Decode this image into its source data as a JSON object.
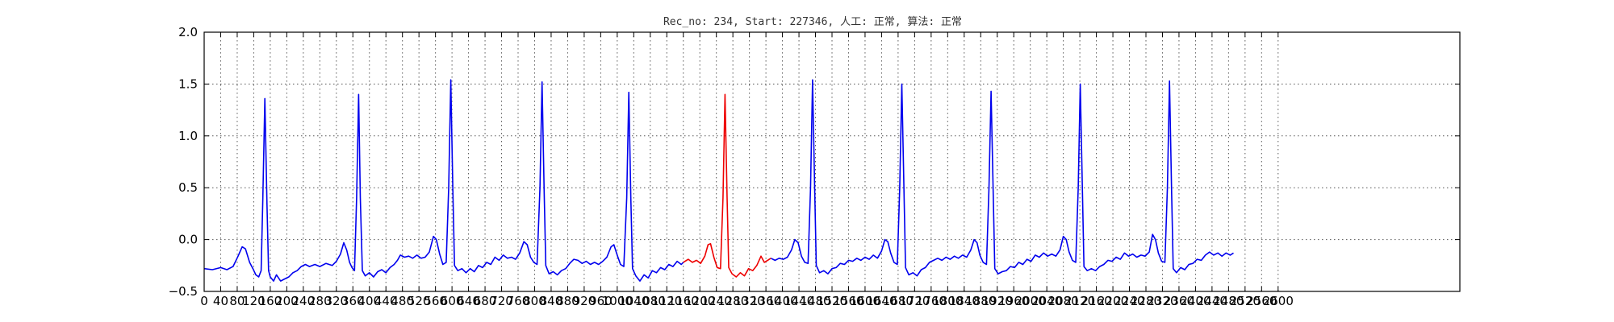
{
  "chart_data": {
    "type": "line",
    "title": "Rec_no: 234, Start: 227346, 人工: 正常, 算法: 正常",
    "xlabel": "",
    "ylabel": "",
    "xlim": [
      0,
      3040
    ],
    "ylim": [
      -0.5,
      2.0
    ],
    "grid": true,
    "yticks": [
      -0.5,
      0.0,
      0.5,
      1.0,
      1.5,
      2.0
    ],
    "ytick_labels": [
      "−0.5",
      "0.0",
      "0.5",
      "1.0",
      "1.5",
      "2.0"
    ],
    "xticks": [
      0,
      40,
      80,
      120,
      160,
      200,
      240,
      280,
      320,
      360,
      400,
      440,
      480,
      520,
      560,
      600,
      640,
      680,
      720,
      760,
      800,
      840,
      880,
      920,
      960,
      1000,
      1040,
      1080,
      1120,
      1160,
      1200,
      1240,
      1280,
      1320,
      1360,
      1400,
      1440,
      1480,
      1520,
      1560,
      1600,
      1640,
      1680,
      1720,
      1760,
      1800,
      1840,
      1880,
      1920,
      1960,
      2000,
      2040,
      2080,
      2120,
      2160,
      2200,
      2240,
      2280,
      2320,
      2360,
      2400,
      2440,
      2480,
      2520,
      2560,
      2600
    ],
    "series_blue": {
      "color": "#0000ee",
      "segments": [
        [
          [
            0,
            -0.28
          ],
          [
            20,
            -0.29
          ],
          [
            40,
            -0.27
          ],
          [
            55,
            -0.29
          ],
          [
            70,
            -0.26
          ],
          [
            82,
            -0.16
          ],
          [
            92,
            -0.07
          ],
          [
            100,
            -0.09
          ],
          [
            110,
            -0.22
          ],
          [
            118,
            -0.28
          ],
          [
            125,
            -0.34
          ],
          [
            132,
            -0.36
          ],
          [
            138,
            -0.3
          ],
          [
            142,
            0.4
          ],
          [
            147,
            1.36
          ],
          [
            152,
            0.35
          ],
          [
            156,
            -0.3
          ],
          [
            160,
            -0.36
          ],
          [
            168,
            -0.4
          ],
          [
            175,
            -0.34
          ],
          [
            185,
            -0.4
          ],
          [
            195,
            -0.38
          ],
          [
            205,
            -0.36
          ],
          [
            215,
            -0.32
          ],
          [
            225,
            -0.3
          ],
          [
            235,
            -0.26
          ],
          [
            245,
            -0.24
          ],
          [
            255,
            -0.26
          ],
          [
            268,
            -0.24
          ],
          [
            280,
            -0.26
          ],
          [
            295,
            -0.23
          ],
          [
            310,
            -0.25
          ],
          [
            320,
            -0.21
          ],
          [
            330,
            -0.14
          ],
          [
            338,
            -0.03
          ],
          [
            345,
            -0.1
          ],
          [
            352,
            -0.22
          ],
          [
            358,
            -0.27
          ],
          [
            364,
            -0.3
          ],
          [
            369,
            0.4
          ],
          [
            374,
            1.4
          ],
          [
            378,
            0.4
          ],
          [
            383,
            -0.3
          ],
          [
            390,
            -0.35
          ],
          [
            400,
            -0.32
          ],
          [
            410,
            -0.36
          ],
          [
            420,
            -0.31
          ],
          [
            430,
            -0.29
          ],
          [
            440,
            -0.32
          ],
          [
            450,
            -0.27
          ],
          [
            460,
            -0.24
          ],
          [
            468,
            -0.2
          ],
          [
            475,
            -0.15
          ],
          [
            485,
            -0.17
          ],
          [
            495,
            -0.16
          ],
          [
            505,
            -0.18
          ],
          [
            515,
            -0.15
          ],
          [
            525,
            -0.18
          ],
          [
            535,
            -0.17
          ],
          [
            545,
            -0.12
          ],
          [
            555,
            0.03
          ],
          [
            562,
            0.0
          ],
          [
            570,
            -0.14
          ],
          [
            578,
            -0.24
          ],
          [
            586,
            -0.22
          ],
          [
            592,
            0.5
          ],
          [
            597,
            1.54
          ],
          [
            602,
            0.5
          ],
          [
            606,
            -0.25
          ],
          [
            614,
            -0.3
          ],
          [
            624,
            -0.28
          ],
          [
            634,
            -0.32
          ],
          [
            644,
            -0.28
          ],
          [
            654,
            -0.31
          ],
          [
            664,
            -0.25
          ],
          [
            674,
            -0.27
          ],
          [
            684,
            -0.22
          ],
          [
            694,
            -0.24
          ],
          [
            704,
            -0.17
          ],
          [
            714,
            -0.2
          ],
          [
            724,
            -0.15
          ],
          [
            734,
            -0.18
          ],
          [
            744,
            -0.17
          ],
          [
            754,
            -0.19
          ],
          [
            764,
            -0.13
          ],
          [
            774,
            -0.02
          ],
          [
            782,
            -0.05
          ],
          [
            790,
            -0.17
          ],
          [
            798,
            -0.22
          ],
          [
            806,
            -0.24
          ],
          [
            813,
            0.5
          ],
          [
            818,
            1.52
          ],
          [
            823,
            0.5
          ],
          [
            827,
            -0.25
          ],
          [
            835,
            -0.33
          ],
          [
            845,
            -0.31
          ],
          [
            855,
            -0.34
          ],
          [
            865,
            -0.3
          ],
          [
            875,
            -0.28
          ],
          [
            885,
            -0.23
          ],
          [
            895,
            -0.19
          ],
          [
            905,
            -0.2
          ],
          [
            915,
            -0.23
          ],
          [
            925,
            -0.21
          ],
          [
            935,
            -0.24
          ],
          [
            945,
            -0.22
          ],
          [
            955,
            -0.24
          ],
          [
            965,
            -0.21
          ],
          [
            975,
            -0.17
          ],
          [
            985,
            -0.07
          ],
          [
            992,
            -0.05
          ],
          [
            1000,
            -0.15
          ],
          [
            1008,
            -0.24
          ],
          [
            1016,
            -0.26
          ],
          [
            1023,
            0.4
          ],
          [
            1028,
            1.42
          ],
          [
            1033,
            0.4
          ],
          [
            1037,
            -0.28
          ],
          [
            1045,
            -0.35
          ],
          [
            1055,
            -0.4
          ],
          [
            1065,
            -0.34
          ],
          [
            1075,
            -0.37
          ],
          [
            1085,
            -0.3
          ],
          [
            1095,
            -0.32
          ],
          [
            1105,
            -0.27
          ],
          [
            1115,
            -0.29
          ],
          [
            1125,
            -0.24
          ],
          [
            1135,
            -0.26
          ],
          [
            1145,
            -0.21
          ],
          [
            1155,
            -0.24
          ],
          [
            1160,
            -0.22
          ]
        ],
        [
          [
            1372,
            -0.18
          ],
          [
            1382,
            -0.2
          ],
          [
            1392,
            -0.18
          ],
          [
            1402,
            -0.19
          ],
          [
            1412,
            -0.17
          ],
          [
            1422,
            -0.1
          ],
          [
            1430,
            0.0
          ],
          [
            1438,
            -0.03
          ],
          [
            1446,
            -0.16
          ],
          [
            1454,
            -0.22
          ],
          [
            1462,
            -0.23
          ],
          [
            1468,
            0.5
          ],
          [
            1473,
            1.54
          ],
          [
            1478,
            0.5
          ],
          [
            1482,
            -0.25
          ],
          [
            1490,
            -0.32
          ],
          [
            1500,
            -0.3
          ],
          [
            1510,
            -0.33
          ],
          [
            1520,
            -0.28
          ],
          [
            1530,
            -0.27
          ],
          [
            1540,
            -0.23
          ],
          [
            1550,
            -0.24
          ],
          [
            1560,
            -0.2
          ],
          [
            1570,
            -0.21
          ],
          [
            1580,
            -0.18
          ],
          [
            1590,
            -0.2
          ],
          [
            1600,
            -0.17
          ],
          [
            1610,
            -0.19
          ],
          [
            1620,
            -0.15
          ],
          [
            1630,
            -0.18
          ],
          [
            1640,
            -0.11
          ],
          [
            1648,
            0.0
          ],
          [
            1655,
            -0.02
          ],
          [
            1662,
            -0.13
          ],
          [
            1670,
            -0.22
          ],
          [
            1678,
            -0.24
          ],
          [
            1684,
            0.5
          ],
          [
            1689,
            1.5
          ],
          [
            1694,
            0.5
          ],
          [
            1698,
            -0.27
          ],
          [
            1706,
            -0.34
          ],
          [
            1716,
            -0.32
          ],
          [
            1726,
            -0.35
          ],
          [
            1736,
            -0.29
          ],
          [
            1746,
            -0.27
          ],
          [
            1756,
            -0.22
          ],
          [
            1766,
            -0.2
          ],
          [
            1776,
            -0.18
          ],
          [
            1786,
            -0.2
          ],
          [
            1796,
            -0.17
          ],
          [
            1806,
            -0.19
          ],
          [
            1816,
            -0.16
          ],
          [
            1826,
            -0.18
          ],
          [
            1836,
            -0.15
          ],
          [
            1846,
            -0.17
          ],
          [
            1856,
            -0.1
          ],
          [
            1864,
            0.0
          ],
          [
            1871,
            -0.03
          ],
          [
            1878,
            -0.15
          ],
          [
            1886,
            -0.22
          ],
          [
            1894,
            -0.24
          ],
          [
            1900,
            0.5
          ],
          [
            1905,
            1.43
          ],
          [
            1910,
            0.5
          ],
          [
            1914,
            -0.28
          ],
          [
            1922,
            -0.33
          ],
          [
            1932,
            -0.31
          ],
          [
            1942,
            -0.3
          ],
          [
            1952,
            -0.26
          ],
          [
            1962,
            -0.27
          ],
          [
            1972,
            -0.22
          ],
          [
            1982,
            -0.24
          ],
          [
            1992,
            -0.19
          ],
          [
            2002,
            -0.21
          ],
          [
            2012,
            -0.15
          ],
          [
            2022,
            -0.17
          ],
          [
            2032,
            -0.13
          ],
          [
            2042,
            -0.16
          ],
          [
            2052,
            -0.14
          ],
          [
            2062,
            -0.16
          ],
          [
            2072,
            -0.1
          ],
          [
            2080,
            0.03
          ],
          [
            2087,
            0.0
          ],
          [
            2094,
            -0.12
          ],
          [
            2102,
            -0.2
          ],
          [
            2110,
            -0.22
          ],
          [
            2116,
            0.5
          ],
          [
            2121,
            1.5
          ],
          [
            2126,
            0.5
          ],
          [
            2130,
            -0.26
          ],
          [
            2138,
            -0.3
          ],
          [
            2148,
            -0.28
          ],
          [
            2158,
            -0.3
          ],
          [
            2168,
            -0.26
          ],
          [
            2178,
            -0.24
          ],
          [
            2188,
            -0.2
          ],
          [
            2198,
            -0.21
          ],
          [
            2208,
            -0.17
          ],
          [
            2218,
            -0.19
          ],
          [
            2228,
            -0.13
          ],
          [
            2238,
            -0.16
          ],
          [
            2248,
            -0.14
          ],
          [
            2258,
            -0.17
          ],
          [
            2268,
            -0.15
          ],
          [
            2278,
            -0.16
          ],
          [
            2288,
            -0.12
          ],
          [
            2296,
            0.05
          ],
          [
            2303,
            0.0
          ],
          [
            2310,
            -0.13
          ],
          [
            2318,
            -0.21
          ],
          [
            2326,
            -0.22
          ],
          [
            2332,
            0.5
          ],
          [
            2337,
            1.53
          ],
          [
            2342,
            0.5
          ],
          [
            2346,
            -0.28
          ],
          [
            2354,
            -0.32
          ],
          [
            2364,
            -0.27
          ],
          [
            2374,
            -0.29
          ],
          [
            2384,
            -0.24
          ],
          [
            2394,
            -0.23
          ],
          [
            2404,
            -0.19
          ],
          [
            2414,
            -0.2
          ],
          [
            2424,
            -0.15
          ],
          [
            2434,
            -0.12
          ],
          [
            2444,
            -0.15
          ],
          [
            2454,
            -0.13
          ],
          [
            2464,
            -0.16
          ],
          [
            2474,
            -0.13
          ],
          [
            2484,
            -0.15
          ],
          [
            2492,
            -0.13
          ]
        ]
      ]
    },
    "series_red": {
      "color": "#ee0000",
      "segments": [
        [
          [
            1160,
            -0.22
          ],
          [
            1172,
            -0.19
          ],
          [
            1182,
            -0.22
          ],
          [
            1192,
            -0.2
          ],
          [
            1202,
            -0.23
          ],
          [
            1212,
            -0.16
          ],
          [
            1220,
            -0.05
          ],
          [
            1226,
            -0.04
          ],
          [
            1234,
            -0.17
          ],
          [
            1242,
            -0.27
          ],
          [
            1250,
            -0.28
          ],
          [
            1256,
            0.4
          ],
          [
            1261,
            1.4
          ],
          [
            1266,
            0.4
          ],
          [
            1270,
            -0.27
          ],
          [
            1278,
            -0.33
          ],
          [
            1288,
            -0.36
          ],
          [
            1298,
            -0.32
          ],
          [
            1308,
            -0.35
          ],
          [
            1318,
            -0.28
          ],
          [
            1328,
            -0.3
          ],
          [
            1338,
            -0.25
          ],
          [
            1348,
            -0.16
          ],
          [
            1356,
            -0.22
          ],
          [
            1364,
            -0.2
          ],
          [
            1372,
            -0.18
          ]
        ]
      ]
    }
  }
}
